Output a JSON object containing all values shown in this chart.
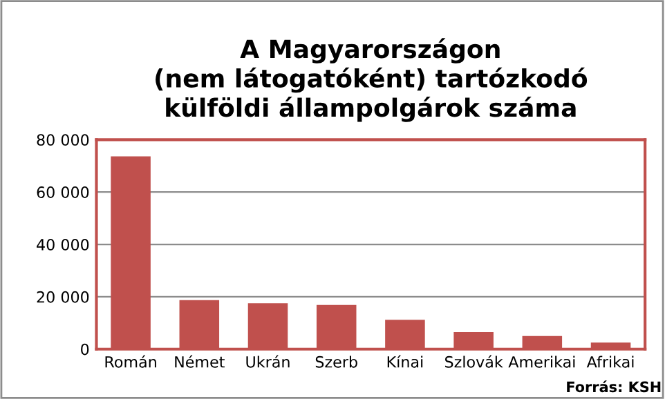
{
  "chart_data": {
    "type": "bar",
    "title": "A Magyarországon\n(nem látogatóként) tartózkodó\nkülföldi állampolgárok száma",
    "categories": [
      "Román",
      "Német",
      "Ukrán",
      "Szerb",
      "Kínai",
      "Szlovák",
      "Amerikai",
      "Afrikai"
    ],
    "values": [
      73600,
      18700,
      17500,
      16900,
      11200,
      6500,
      5000,
      2500
    ],
    "color": "#c0504d",
    "ylim": [
      0,
      80000
    ],
    "yticks": [
      {
        "value": 0,
        "label": "0"
      },
      {
        "value": 20000,
        "label": "20 000"
      },
      {
        "value": 40000,
        "label": "40 000"
      },
      {
        "value": 60000,
        "label": "60 000"
      },
      {
        "value": 80000,
        "label": "80 000"
      }
    ],
    "grid": "y",
    "annotations": [
      "Forrás: KSH"
    ]
  }
}
